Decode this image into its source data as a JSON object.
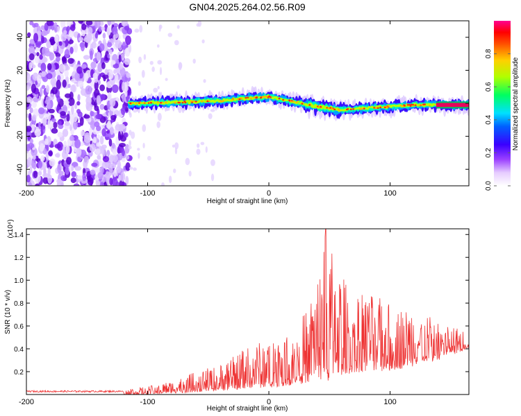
{
  "title": "GN04.2025.264.02.56.R09",
  "chart_data": [
    {
      "type": "heatmap",
      "name": "spectrogram",
      "title": "GN04.2025.264.02.56.R09",
      "xlabel": "Height of straight line (km)",
      "ylabel": "Frequency (Hz)",
      "xlim": [
        -200,
        165
      ],
      "ylim": [
        -50,
        50
      ],
      "xticks": [
        -200,
        -100,
        0,
        100
      ],
      "yticks": [
        -40,
        -20,
        0,
        20,
        40
      ],
      "xtick_labels": [
        "-200",
        "-100",
        "0",
        "100"
      ],
      "ytick_labels": [
        "-40",
        "-20",
        "0",
        "20",
        "40"
      ],
      "noise_region_x": [
        -200,
        -115
      ],
      "signal_band_center_x": [
        -115,
        -80,
        -40,
        -20,
        0,
        20,
        40,
        60,
        80,
        100,
        120,
        140,
        165
      ],
      "signal_band_center_y": [
        0,
        0.5,
        1.5,
        3,
        4,
        1,
        -2,
        -4,
        -3,
        -2,
        -1,
        -1,
        -1
      ],
      "colorbar": {
        "label": "Normalized spectral amplitude",
        "range": [
          0,
          1
        ],
        "ticks": [
          0.0,
          0.2,
          0.4,
          0.6,
          0.8
        ],
        "tick_labels": [
          "0.0",
          "0.2",
          "0.4",
          "0.6",
          "0.8"
        ],
        "colors": [
          "#ffffff",
          "#c49bff",
          "#7a00e6",
          "#0000ff",
          "#00ffff",
          "#00ff00",
          "#ffff00",
          "#ff8000",
          "#ff0000",
          "#ff0090"
        ]
      }
    },
    {
      "type": "line",
      "name": "snr",
      "xlabel": "Height of straight line (km)",
      "ylabel": "SNR (10 * v/v)",
      "scale_label": "(x10⁴)",
      "xlim": [
        -200,
        165
      ],
      "ylim": [
        0,
        1.45
      ],
      "xticks": [
        -200,
        -100,
        0,
        100
      ],
      "yticks": [
        0.2,
        0.4,
        0.6,
        0.8,
        1.0,
        1.2,
        1.4
      ],
      "xtick_labels": [
        "-200",
        "-100",
        "0",
        "100"
      ],
      "ytick_labels": [
        "0.2",
        "0.4",
        "0.6",
        "0.8",
        "1.0",
        "1.2",
        "1.4"
      ],
      "color": "#ee3333",
      "envelope": {
        "x": [
          -200,
          -120,
          -100,
          -80,
          -60,
          -40,
          -20,
          0,
          20,
          30,
          40,
          47,
          55,
          65,
          80,
          100,
          120,
          140,
          165
        ],
        "upper": [
          0.03,
          0.04,
          0.07,
          0.12,
          0.2,
          0.26,
          0.4,
          0.5,
          0.6,
          0.72,
          1.05,
          1.45,
          1.18,
          0.95,
          0.9,
          0.8,
          0.75,
          0.65,
          0.55
        ],
        "lower": [
          0.0,
          0.0,
          0.0,
          0.01,
          0.02,
          0.03,
          0.05,
          0.06,
          0.08,
          0.1,
          0.12,
          0.1,
          0.15,
          0.18,
          0.2,
          0.2,
          0.25,
          0.3,
          0.4
        ]
      },
      "peak": {
        "x": 47,
        "y": 1.45
      }
    }
  ]
}
